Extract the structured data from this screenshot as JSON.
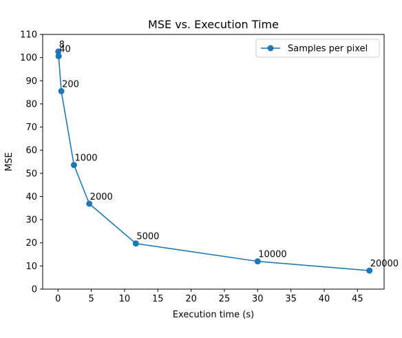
{
  "chart_data": {
    "type": "line",
    "title": "MSE vs. Execution Time",
    "xlabel": "Execution time (s)",
    "ylabel": "MSE",
    "xlim": [
      -2.3,
      49
    ],
    "ylim": [
      0,
      110
    ],
    "xticks": [
      0,
      5,
      10,
      15,
      20,
      25,
      30,
      35,
      40,
      45
    ],
    "yticks": [
      0,
      10,
      20,
      30,
      40,
      50,
      60,
      70,
      80,
      90,
      100,
      110
    ],
    "grid": false,
    "legend_position": "top-right",
    "series": [
      {
        "name": "Samples per pixel",
        "color": "#1f77b4",
        "marker": "circle",
        "points": [
          {
            "label": "8",
            "x": 0.05,
            "y": 102.6
          },
          {
            "label": "40",
            "x": 0.1,
            "y": 100.6
          },
          {
            "label": "200",
            "x": 0.5,
            "y": 85.5
          },
          {
            "label": "1000",
            "x": 2.4,
            "y": 53.6
          },
          {
            "label": "2000",
            "x": 4.7,
            "y": 36.9
          },
          {
            "label": "5000",
            "x": 11.7,
            "y": 19.7
          },
          {
            "label": "10000",
            "x": 30.0,
            "y": 12.0
          },
          {
            "label": "20000",
            "x": 46.8,
            "y": 8.0
          }
        ]
      }
    ]
  }
}
